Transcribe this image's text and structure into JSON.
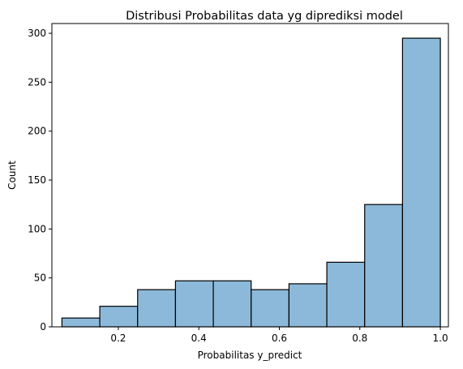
{
  "chart_data": {
    "type": "bar",
    "title": "Distribusi Probabilitas data yg diprediksi model",
    "xlabel": "Probabilitas y_predict",
    "ylabel": "Count",
    "xlim": [
      0.035,
      1.02
    ],
    "ylim": [
      0,
      310
    ],
    "xticks": [
      "0.2",
      "0.4",
      "0.6",
      "0.8",
      "1.0"
    ],
    "yticks": [
      "0",
      "50",
      "100",
      "150",
      "200",
      "250",
      "300"
    ],
    "bin_edges": [
      0.06,
      0.154,
      0.248,
      0.342,
      0.436,
      0.53,
      0.624,
      0.718,
      0.812,
      0.906,
      1.0
    ],
    "values": [
      9,
      21,
      38,
      47,
      47,
      38,
      44,
      66,
      125,
      295
    ],
    "bar_color": "#8cb9d9",
    "edge_color": "#000000",
    "grid": false,
    "legend": "none"
  }
}
